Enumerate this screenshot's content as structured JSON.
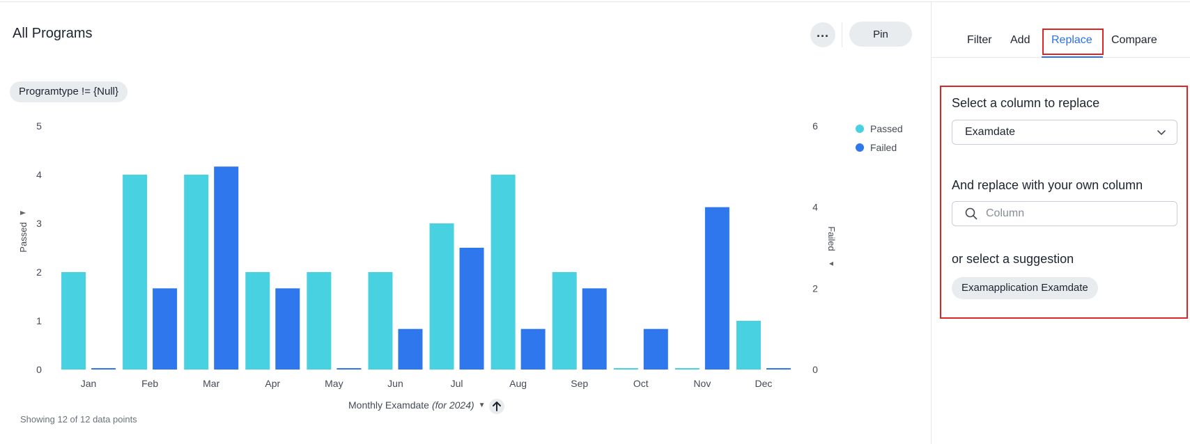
{
  "header": {
    "title": "All Programs",
    "more_label": "...",
    "pin_label": "Pin"
  },
  "filter_chip": "Programtype != {Null}",
  "chart_data": {
    "type": "bar",
    "categories": [
      "Jan",
      "Feb",
      "Mar",
      "Apr",
      "May",
      "Jun",
      "Jul",
      "Aug",
      "Sep",
      "Oct",
      "Nov",
      "Dec"
    ],
    "series": [
      {
        "name": "Passed",
        "axis": "left",
        "color": "#48d1e0",
        "values": [
          2,
          4,
          4,
          2,
          2,
          2,
          3,
          4,
          2,
          0,
          0,
          1
        ]
      },
      {
        "name": "Failed",
        "axis": "right",
        "color": "#2e77ec",
        "values": [
          0,
          2,
          5,
          2,
          0,
          1,
          3,
          1,
          2,
          1,
          4,
          0
        ]
      }
    ],
    "ylabel_left": "Passed",
    "ylabel_right": "Failed",
    "ylim_left": [
      0,
      5
    ],
    "yticks_left": [
      0,
      1,
      2,
      3,
      4,
      5
    ],
    "ylim_right": [
      0,
      6
    ],
    "yticks_right": [
      0,
      2,
      4,
      6
    ],
    "xlabel": "Monthly Examdate",
    "xlabel_suffix": "(for 2024)",
    "legend_position": "top-right",
    "grid": false
  },
  "footer": {
    "datapoints": "Showing 12 of 12 data points"
  },
  "sort_icon": "arrow-up-icon",
  "right_panel": {
    "tabs": [
      "Filter",
      "Add",
      "Replace",
      "Compare"
    ],
    "active_tab": "Replace",
    "select_label": "Select a column to replace",
    "select_value": "Examdate",
    "replace_label": "And replace with your own column",
    "search_placeholder": "Column",
    "suggestion_label": "or select a suggestion",
    "suggestion": "Examapplication Examdate"
  },
  "colors": {
    "accent": "#2770ef",
    "highlight": "#e02424",
    "passed": "#48d1e0",
    "failed": "#2e77ec"
  }
}
